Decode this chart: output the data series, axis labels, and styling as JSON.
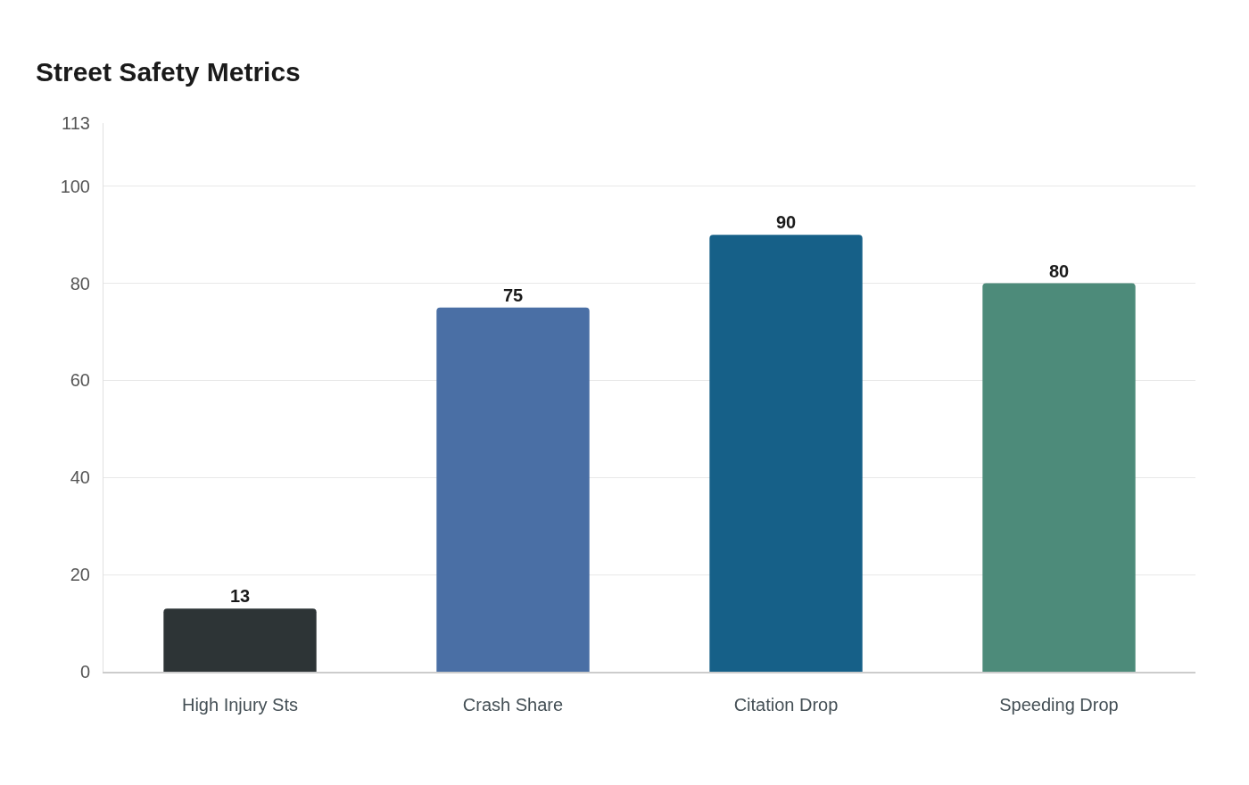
{
  "chart_data": {
    "type": "bar",
    "title": "Street Safety Metrics",
    "categories": [
      "High Injury Sts",
      "Crash Share",
      "Citation Drop",
      "Speeding Drop"
    ],
    "values": [
      13,
      75,
      90,
      80
    ],
    "colors": [
      "#2d3436",
      "#4a6fa5",
      "#166088",
      "#4d8b7a"
    ],
    "ylim": [
      0,
      113
    ],
    "yticks": [
      0,
      20,
      40,
      60,
      80,
      100,
      113
    ],
    "grid": "y",
    "data_labels": true
  }
}
